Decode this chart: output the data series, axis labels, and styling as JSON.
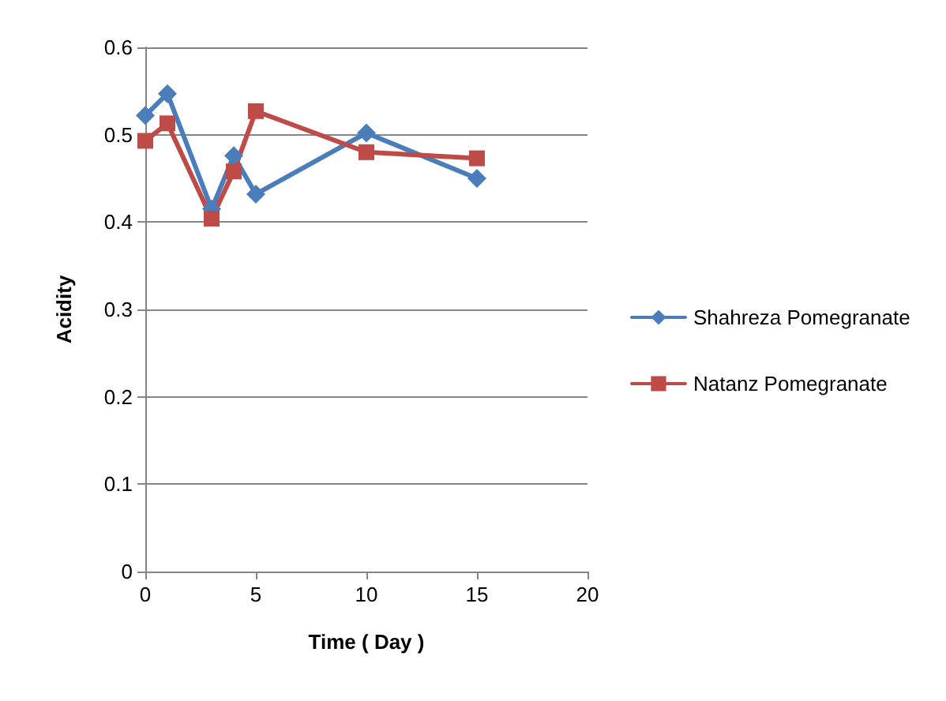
{
  "chart_data": {
    "type": "line",
    "xlabel": "Time ( Day )",
    "ylabel": "Acidity",
    "x": [
      0,
      1,
      3,
      4,
      5,
      10,
      15
    ],
    "series": [
      {
        "name": "Shahreza Pomegranate",
        "color": "#4a7ebb",
        "marker": "diamond",
        "values": [
          0.522,
          0.547,
          0.415,
          0.476,
          0.432,
          0.502,
          0.45
        ]
      },
      {
        "name": "Natanz Pomegranate",
        "color": "#be4b48",
        "marker": "square",
        "values": [
          0.493,
          0.513,
          0.404,
          0.458,
          0.527,
          0.48,
          0.473
        ]
      }
    ],
    "xlim": [
      0,
      20
    ],
    "xticks": [
      0,
      5,
      10,
      15,
      20
    ],
    "ylim": [
      0,
      0.6
    ],
    "yticks": [
      0,
      0.1,
      0.2,
      0.3,
      0.4,
      0.5,
      0.6
    ],
    "grid": "y",
    "legend": "right"
  }
}
